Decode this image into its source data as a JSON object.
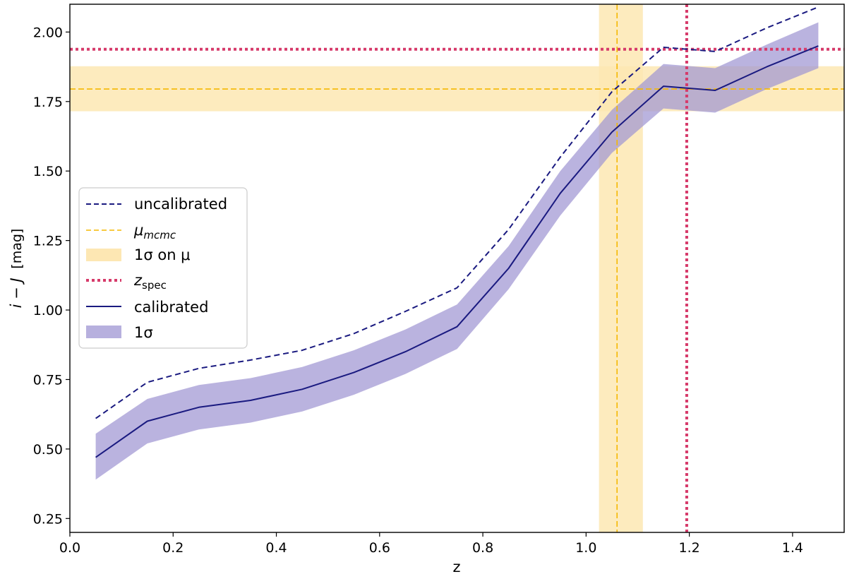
{
  "chart_data": {
    "type": "line",
    "xlabel": "z",
    "ylabel_main": "i − J",
    "ylabel_unit": "[mag]",
    "xlim": [
      0.0,
      1.5
    ],
    "ylim": [
      0.2,
      2.1
    ],
    "xticks": [
      0.0,
      0.2,
      0.4,
      0.6,
      0.8,
      1.0,
      1.2,
      1.4
    ],
    "xtick_labels": [
      "0.0",
      "0.2",
      "0.4",
      "0.6",
      "0.8",
      "1.0",
      "1.2",
      "1.4"
    ],
    "yticks": [
      0.25,
      0.5,
      0.75,
      1.0,
      1.25,
      1.5,
      1.75,
      2.0
    ],
    "ytick_labels": [
      "0.25",
      "0.50",
      "0.75",
      "1.00",
      "1.25",
      "1.50",
      "1.75",
      "2.00"
    ],
    "x": [
      0.05,
      0.15,
      0.25,
      0.35,
      0.45,
      0.55,
      0.65,
      0.75,
      0.85,
      0.95,
      1.05,
      1.15,
      1.25,
      1.35,
      1.45
    ],
    "series": [
      {
        "name": "uncalibrated",
        "style": "dashed",
        "color": "#1a1a80",
        "values": [
          0.61,
          0.74,
          0.79,
          0.82,
          0.855,
          0.915,
          0.995,
          1.08,
          1.29,
          1.55,
          1.785,
          1.945,
          1.93,
          2.015,
          2.09
        ]
      },
      {
        "name": "calibrated",
        "style": "solid",
        "color": "#1a1a80",
        "values": [
          0.47,
          0.6,
          0.65,
          0.675,
          0.715,
          0.775,
          0.85,
          0.94,
          1.15,
          1.42,
          1.64,
          1.805,
          1.79,
          1.875,
          1.95
        ]
      }
    ],
    "band": {
      "name": "1σ",
      "color": "#9f95d3",
      "lower": [
        0.39,
        0.52,
        0.57,
        0.595,
        0.635,
        0.695,
        0.77,
        0.86,
        1.075,
        1.34,
        1.565,
        1.725,
        1.71,
        1.795,
        1.87
      ],
      "upper": [
        0.555,
        0.68,
        0.73,
        0.755,
        0.795,
        0.855,
        0.93,
        1.02,
        1.23,
        1.5,
        1.72,
        1.885,
        1.87,
        1.955,
        2.035
      ]
    },
    "mu_mcmc": {
      "color": "#f5b800",
      "band_color": "#fde7b3",
      "horizontal": {
        "value": 1.795,
        "lower": 1.715,
        "upper": 1.877
      },
      "vertical": {
        "value": 1.06,
        "lower": 1.025,
        "upper": 1.11
      }
    },
    "z_spec": {
      "color": "#d63a6a",
      "x": 1.195,
      "y": 1.938
    },
    "legend": {
      "location": "center-left",
      "entries": [
        {
          "key": "uncalibrated",
          "label": "uncalibrated"
        },
        {
          "key": "mu",
          "label_main": "μ",
          "label_sub": "mcmc"
        },
        {
          "key": "mu_band",
          "label": "1σ on μ"
        },
        {
          "key": "zspec",
          "label_main": "z",
          "label_sub": "spec"
        },
        {
          "key": "calibrated",
          "label": "calibrated"
        },
        {
          "key": "band",
          "label": "1σ"
        }
      ]
    }
  }
}
